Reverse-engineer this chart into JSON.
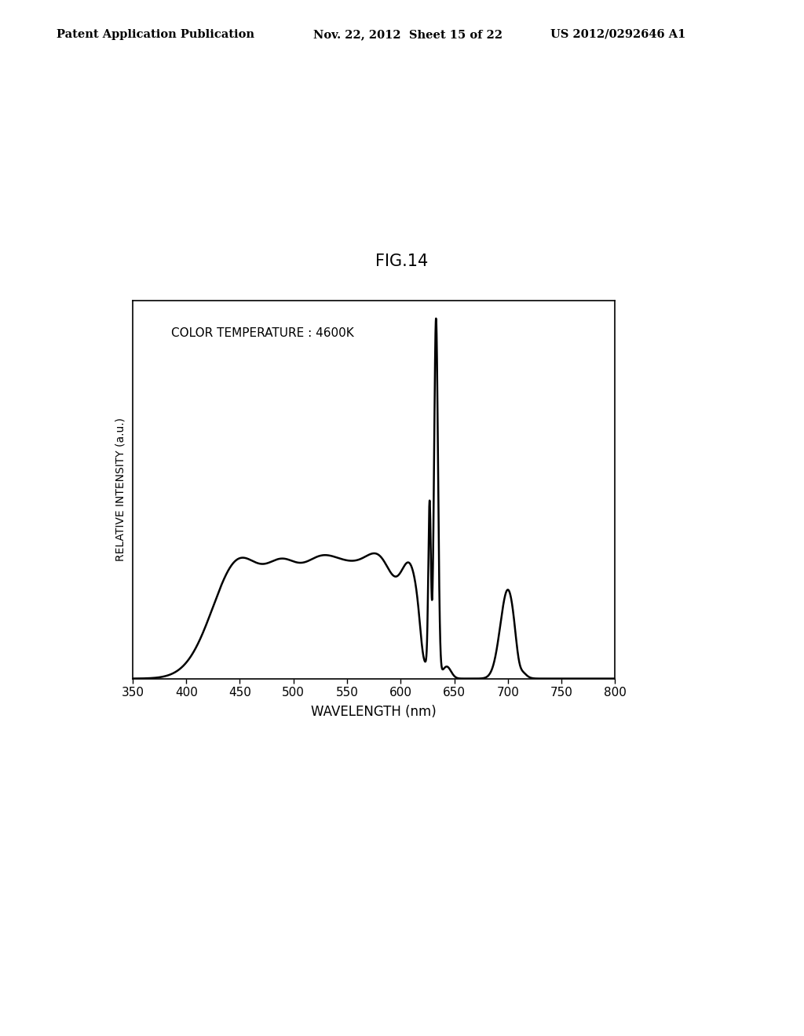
{
  "title_fig": "FIG.14",
  "header_left": "Patent Application Publication",
  "header_mid": "Nov. 22, 2012  Sheet 15 of 22",
  "header_right": "US 2012/0292646 A1",
  "annotation": "COLOR TEMPERATURE : 4600K",
  "xlabel": "WAVELENGTH (nm)",
  "ylabel": "RELATIVE INTENSITY (a.u.)",
  "xlim": [
    350,
    800
  ],
  "xticks": [
    350,
    400,
    450,
    500,
    550,
    600,
    650,
    700,
    750,
    800
  ],
  "background_color": "#ffffff",
  "line_color": "#000000",
  "line_width": 1.8
}
